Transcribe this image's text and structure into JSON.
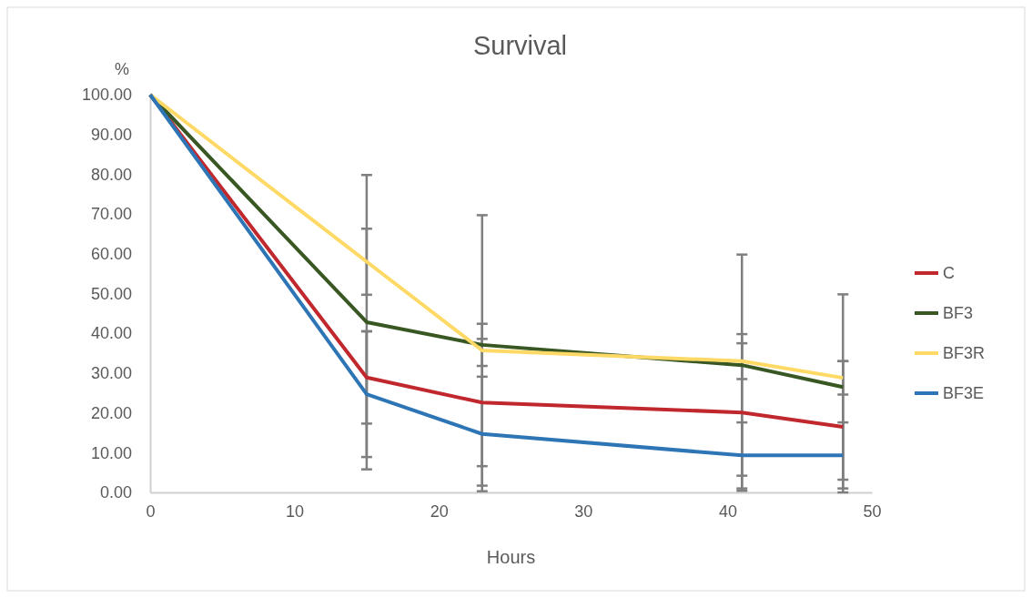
{
  "chart_data": {
    "type": "line",
    "title": "Survival",
    "xlabel": "Hours",
    "ylabel": "%",
    "x": [
      0,
      15,
      23,
      41,
      48
    ],
    "xlim": [
      0,
      50
    ],
    "xticks": [
      0,
      10,
      20,
      30,
      40,
      50
    ],
    "ylim": [
      0,
      100
    ],
    "yticks": [
      {
        "value": 0,
        "label": "0.00"
      },
      {
        "value": 10,
        "label": "10.00"
      },
      {
        "value": 20,
        "label": "20.00"
      },
      {
        "value": 30,
        "label": "30.00"
      },
      {
        "value": 40,
        "label": "40.00"
      },
      {
        "value": 50,
        "label": "50.00"
      },
      {
        "value": 60,
        "label": "60.00"
      },
      {
        "value": 70,
        "label": "70.00"
      },
      {
        "value": 80,
        "label": "80.00"
      },
      {
        "value": 90,
        "label": "90.00"
      },
      {
        "value": 100,
        "label": "100.00"
      }
    ],
    "grid": false,
    "legend": "right",
    "marker": "none",
    "line_style": "solid",
    "series": [
      {
        "name": "C",
        "color": "#c0282d",
        "values": [
          100,
          28.9,
          22.6,
          20.1,
          16.5
        ],
        "errors": [
          null,
          11.6,
          16,
          19.7,
          16.5
        ]
      },
      {
        "name": "BF3",
        "color": "#385723",
        "values": [
          100,
          42.8,
          37.1,
          32.0,
          26.5
        ],
        "errors": [
          null,
          37,
          5.3,
          27.8,
          23.3
        ]
      },
      {
        "name": "BF3R",
        "color": "#ffd966",
        "values": [
          100,
          58.0,
          35.7,
          33.0,
          28.8
        ],
        "errors": [
          null,
          8.3,
          34,
          4.5,
          4.2
        ]
      },
      {
        "name": "BF3E",
        "color": "#2e75b6",
        "values": [
          100,
          24.7,
          14.7,
          9.3,
          9.3
        ],
        "errors": [
          null,
          15.8,
          14.4,
          8.3,
          8.3
        ]
      }
    ]
  }
}
